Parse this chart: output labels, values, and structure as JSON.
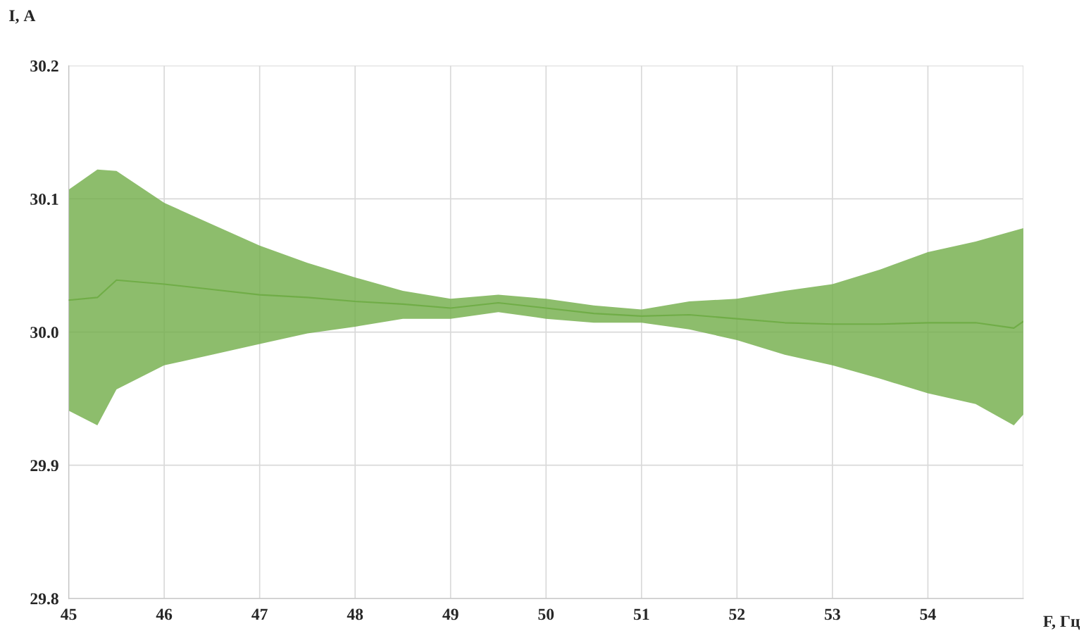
{
  "chart_data": {
    "type": "line",
    "xlabel": "F, Гц",
    "ylabel": "I, А",
    "xlim": [
      45,
      55
    ],
    "xticks": [
      45,
      46,
      47,
      48,
      49,
      50,
      51,
      52,
      53,
      54,
      {
        "value": 55,
        "label": null
      }
    ],
    "ylim": [
      29.8,
      30.2
    ],
    "yticks": [
      29.8,
      29.9,
      {
        "value": 30.0,
        "label": "30.0"
      },
      30.1,
      30.2
    ],
    "grid": true,
    "marker": "none",
    "line_style": "solid",
    "series": [
      {
        "color": "#70ad47",
        "x": [
          45,
          45.3,
          45.5,
          46,
          46.5,
          47,
          47.5,
          48,
          48.5,
          49,
          49.5,
          50,
          50.5,
          51,
          51.5,
          52,
          52.5,
          53,
          53.5,
          54,
          54.5,
          54.9,
          55
        ],
        "values": [
          30.024,
          30.026,
          30.039,
          30.036,
          30.032,
          30.028,
          30.026,
          30.023,
          30.021,
          30.018,
          30.022,
          30.018,
          30.014,
          30.012,
          30.013,
          30.01,
          30.007,
          30.006,
          30.006,
          30.007,
          30.007,
          30.003,
          30.008
        ],
        "upper": [
          30.107,
          30.122,
          30.121,
          30.097,
          30.081,
          30.065,
          30.052,
          30.041,
          30.031,
          30.025,
          30.028,
          30.025,
          30.02,
          30.017,
          30.023,
          30.025,
          30.031,
          30.036,
          30.047,
          30.06,
          30.068,
          30.076,
          30.078
        ],
        "lower": [
          29.941,
          29.93,
          29.957,
          29.975,
          29.983,
          29.991,
          29.999,
          30.004,
          30.01,
          30.01,
          30.015,
          30.01,
          30.007,
          30.007,
          30.002,
          29.994,
          29.983,
          29.975,
          29.965,
          29.954,
          29.946,
          29.93,
          29.938
        ]
      }
    ]
  }
}
